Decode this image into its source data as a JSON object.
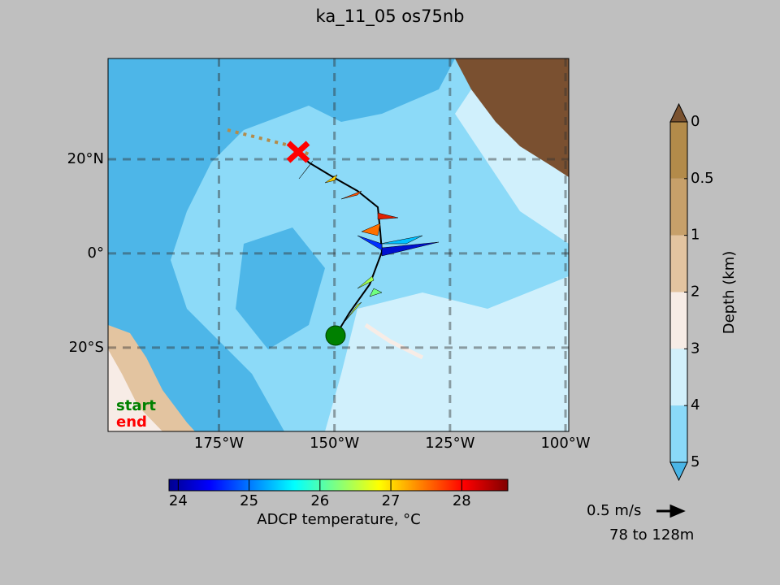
{
  "title": "ka_11_05 os75nb",
  "map": {
    "xlim": [
      -199,
      -99.3
    ],
    "ylim": [
      -37.8,
      41.4
    ],
    "xticks": [
      {
        "value": -175,
        "label": "175°W"
      },
      {
        "value": -150,
        "label": "150°W"
      },
      {
        "value": -125,
        "label": "125°W"
      },
      {
        "value": -100,
        "label": "100°W"
      }
    ],
    "yticks": [
      {
        "value": 20,
        "label": "20°N"
      },
      {
        "value": 0,
        "label": "0°"
      },
      {
        "value": -20,
        "label": "20°S"
      }
    ],
    "start_label": "start",
    "end_label": "end"
  },
  "temperature_colorbar": {
    "lim": [
      23.87,
      28.65
    ],
    "ticks": [
      24,
      25,
      26,
      27,
      28
    ],
    "label": "ADCP temperature, °C"
  },
  "depth_colorbar": {
    "levels": [
      0,
      0.5,
      1,
      2,
      3,
      4,
      5
    ],
    "colors": [
      "#b38b4a",
      "#c7a06a",
      "#e3c4a0",
      "#f7ece6",
      "#d2f0fb",
      "#8ad9f8"
    ],
    "label": "Depth (km)"
  },
  "scale": {
    "label": "0.5 m/s",
    "depth_range": "78 to 128m"
  }
}
